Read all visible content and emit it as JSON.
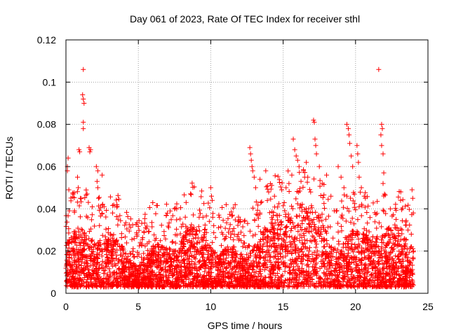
{
  "chart_data": {
    "type": "scatter",
    "title": "Day 061 of 2023, Rate Of TEC Index for receiver sthl",
    "xlabel": "GPS time / hours",
    "ylabel": "ROTI / TECUs",
    "xlim": [
      0,
      25
    ],
    "ylim": [
      0,
      0.12
    ],
    "xticks": [
      "0",
      "5",
      "10",
      "15",
      "20",
      "25"
    ],
    "yticks": [
      "0",
      "0.02",
      "0.04",
      "0.06",
      "0.08",
      "0.1",
      "0.12"
    ],
    "grid": true,
    "marker": "+",
    "color": "#ff0000",
    "series": [
      {
        "name": "ROTI",
        "points": [
          [
            0.1,
            0.058
          ],
          [
            0.15,
            0.064
          ],
          [
            0.2,
            0.049
          ],
          [
            0.1,
            0.06
          ],
          [
            0.9,
            0.068
          ],
          [
            0.95,
            0.067
          ],
          [
            1.2,
            0.106
          ],
          [
            1.15,
            0.094
          ],
          [
            1.2,
            0.092
          ],
          [
            1.25,
            0.09
          ],
          [
            1.2,
            0.081
          ],
          [
            1.2,
            0.078
          ],
          [
            1.6,
            0.069
          ],
          [
            1.65,
            0.067
          ],
          [
            1.7,
            0.068
          ],
          [
            0.8,
            0.055
          ],
          [
            0.85,
            0.05
          ],
          [
            1.0,
            0.045
          ],
          [
            2.1,
            0.06
          ],
          [
            2.2,
            0.058
          ],
          [
            2.15,
            0.053
          ],
          [
            2.2,
            0.05
          ],
          [
            2.25,
            0.045
          ],
          [
            2.5,
            0.056
          ],
          [
            4.9,
            0.027
          ],
          [
            5.5,
            0.031
          ],
          [
            7.0,
            0.038
          ],
          [
            7.2,
            0.039
          ],
          [
            7.5,
            0.04
          ],
          [
            8.3,
            0.043
          ],
          [
            9.2,
            0.036
          ],
          [
            10.0,
            0.05
          ],
          [
            10.05,
            0.046
          ],
          [
            10.1,
            0.044
          ],
          [
            10.6,
            0.036
          ],
          [
            11.5,
            0.037
          ],
          [
            12.7,
            0.069
          ],
          [
            12.75,
            0.066
          ],
          [
            12.8,
            0.063
          ],
          [
            12.85,
            0.06
          ],
          [
            12.9,
            0.058
          ],
          [
            13.0,
            0.055
          ],
          [
            13.1,
            0.05
          ],
          [
            13.4,
            0.054
          ],
          [
            13.8,
            0.058
          ],
          [
            14.0,
            0.048
          ],
          [
            14.4,
            0.046
          ],
          [
            15.2,
            0.05
          ],
          [
            15.4,
            0.052
          ],
          [
            15.6,
            0.056
          ],
          [
            15.7,
            0.073
          ],
          [
            15.8,
            0.068
          ],
          [
            15.9,
            0.065
          ],
          [
            16.0,
            0.063
          ],
          [
            16.1,
            0.06
          ],
          [
            16.4,
            0.058
          ],
          [
            16.6,
            0.062
          ],
          [
            16.7,
            0.055
          ],
          [
            16.9,
            0.048
          ],
          [
            17.1,
            0.082
          ],
          [
            17.15,
            0.081
          ],
          [
            17.2,
            0.073
          ],
          [
            17.25,
            0.07
          ],
          [
            17.3,
            0.066
          ],
          [
            17.5,
            0.06
          ],
          [
            17.7,
            0.052
          ],
          [
            18.0,
            0.056
          ],
          [
            18.3,
            0.046
          ],
          [
            18.8,
            0.06
          ],
          [
            19.0,
            0.055
          ],
          [
            19.2,
            0.05
          ],
          [
            19.4,
            0.08
          ],
          [
            19.5,
            0.078
          ],
          [
            19.55,
            0.075
          ],
          [
            19.6,
            0.071
          ],
          [
            19.7,
            0.065
          ],
          [
            19.8,
            0.06
          ],
          [
            20.1,
            0.07
          ],
          [
            20.15,
            0.066
          ],
          [
            20.2,
            0.062
          ],
          [
            20.25,
            0.055
          ],
          [
            20.4,
            0.05
          ],
          [
            20.6,
            0.046
          ],
          [
            21.6,
            0.106
          ],
          [
            21.8,
            0.08
          ],
          [
            21.85,
            0.078
          ],
          [
            21.75,
            0.075
          ],
          [
            21.8,
            0.07
          ],
          [
            21.9,
            0.066
          ],
          [
            21.95,
            0.057
          ],
          [
            21.9,
            0.052
          ],
          [
            22.0,
            0.047
          ],
          [
            22.4,
            0.04
          ],
          [
            22.8,
            0.035
          ],
          [
            23.2,
            0.03
          ],
          [
            23.9,
            0.049
          ],
          [
            23.95,
            0.045
          ],
          [
            23.85,
            0.028
          ],
          [
            24.0,
            0.02
          ]
        ]
      }
    ]
  }
}
